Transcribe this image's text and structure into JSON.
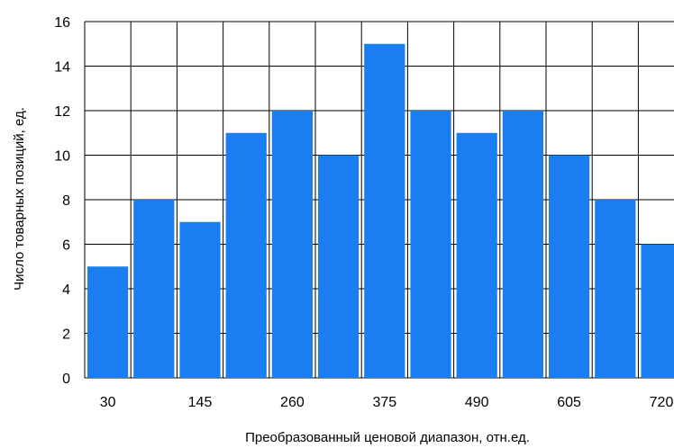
{
  "chart_data": {
    "type": "bar",
    "title": "",
    "xlabel": "Преобразованный ценовой диапазон, отн.ед.",
    "ylabel": "Число товарных позиций, ед.",
    "categories": [
      "30",
      "",
      "145",
      "",
      "260",
      "",
      "375",
      "",
      "490",
      "",
      "605",
      "",
      "720"
    ],
    "x_tick_labels": [
      "30",
      "145",
      "260",
      "375",
      "490",
      "605",
      "720"
    ],
    "values": [
      5,
      8,
      7,
      11,
      12,
      10,
      15,
      12,
      11,
      12,
      10,
      8,
      6
    ],
    "ylim": [
      0,
      16
    ],
    "y_ticks": [
      "0",
      "2",
      "4",
      "6",
      "8",
      "10",
      "12",
      "14",
      "16"
    ],
    "grid": true,
    "bar_color": "#1a7ef0",
    "grid_color": "#000000"
  }
}
